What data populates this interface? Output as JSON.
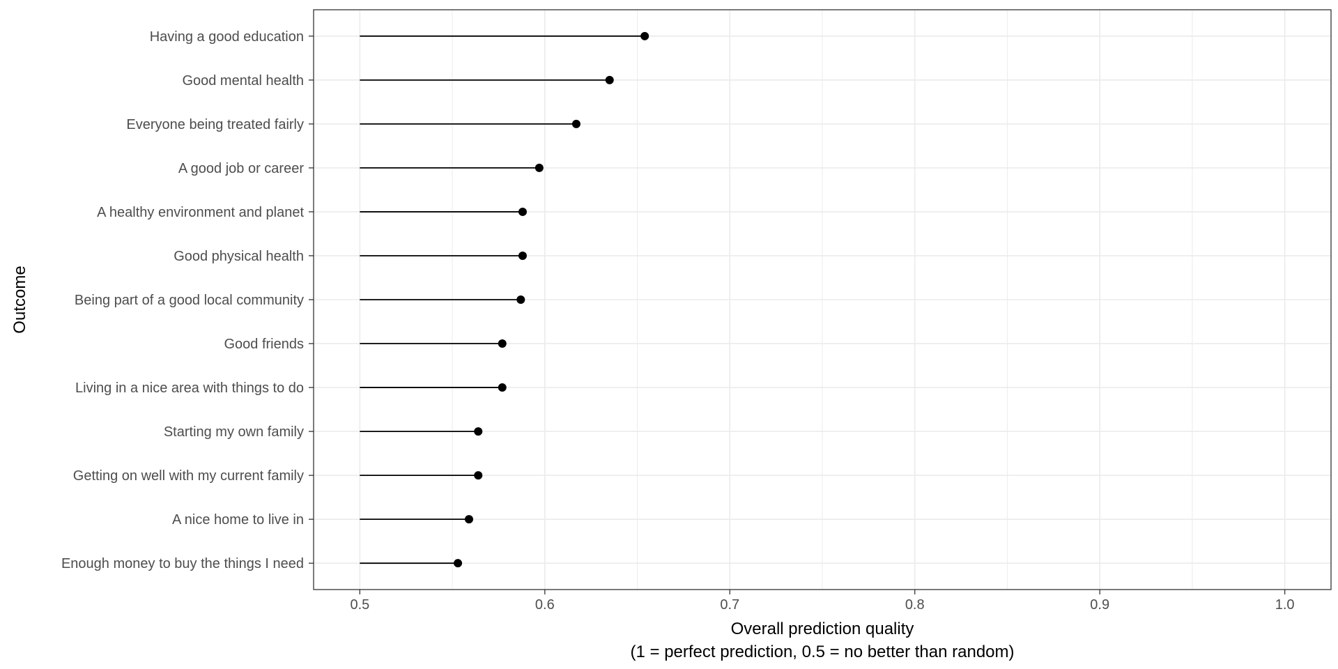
{
  "chart_data": {
    "type": "lollipop",
    "xlabel": "Overall prediction quality",
    "xlabel_sub": "(1 = perfect prediction, 0.5 = no better than random)",
    "ylabel": "Outcome",
    "xlim": [
      0.475,
      1.025
    ],
    "x_ticks": [
      "0.5",
      "0.6",
      "0.7",
      "0.8",
      "0.9",
      "1.0"
    ],
    "baseline": 0.5,
    "grid": true,
    "categories": [
      "Having a good education",
      "Good mental health",
      "Everyone being treated fairly",
      "A good job or career",
      "A healthy environment and planet",
      "Good physical health",
      "Being part of a good local community",
      "Good friends",
      "Living in a nice area with things to do",
      "Starting my own family",
      "Getting on well with my current family",
      "A nice home to live in",
      "Enough money to buy the things I need"
    ],
    "values": [
      0.654,
      0.635,
      0.617,
      0.597,
      0.588,
      0.588,
      0.587,
      0.577,
      0.577,
      0.564,
      0.564,
      0.559,
      0.553
    ],
    "colors": {
      "mark": "#000000",
      "grid": "#ebebeb",
      "panel_border": "#333333",
      "tick_text": "#4d4d4d"
    }
  }
}
